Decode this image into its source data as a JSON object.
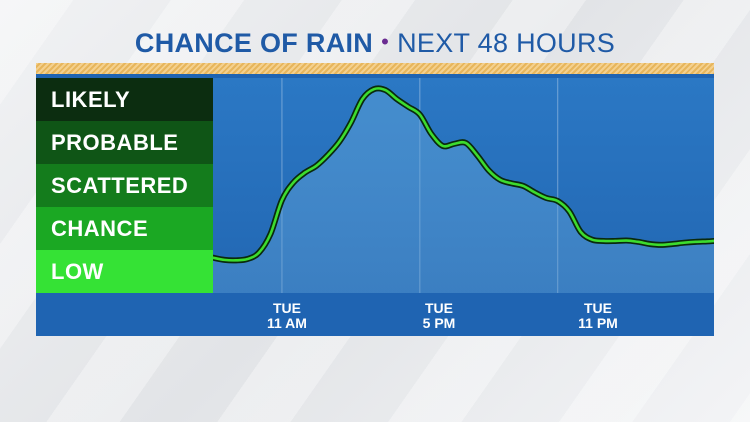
{
  "title": {
    "main": "CHANCE OF RAIN",
    "separator": "•",
    "sub": "NEXT 48 HOURS"
  },
  "colors": {
    "title_blue": "#1f5aa6",
    "separator_purple": "#6a2c91",
    "panel_blue": "#1f64b2",
    "line_green": "#3ddc2e",
    "line_outline": "#0a2a0e",
    "gold_band": "#e7b65c"
  },
  "chart_data": {
    "type": "area",
    "title": "CHANCE OF RAIN • NEXT 48 HOURS",
    "xlabel": "",
    "ylabel": "",
    "y_categories": [
      "LOW",
      "CHANCE",
      "SCATTERED",
      "PROBABLE",
      "LIKELY"
    ],
    "y_category_colors": [
      "#35e235",
      "#1ba823",
      "#147c1c",
      "#0f5516",
      "#0c2d10"
    ],
    "x_ticks": [
      {
        "day": "TUE",
        "time": "11 AM",
        "hour": 11
      },
      {
        "day": "TUE",
        "time": "5 PM",
        "hour": 17
      },
      {
        "day": "TUE",
        "time": "11 PM",
        "hour": 23
      }
    ],
    "xlim": [
      8,
      29.8
    ],
    "ylim": [
      0,
      5
    ],
    "grid": "vertical lines at ticks",
    "x": [
      8,
      8.5,
      9,
      9.5,
      10,
      10.5,
      11,
      11.5,
      12,
      12.5,
      13,
      13.5,
      14,
      14.5,
      15,
      15.5,
      16,
      16.5,
      17,
      17.5,
      18,
      18.5,
      19,
      19.5,
      20,
      20.5,
      21,
      21.5,
      22,
      22.5,
      23,
      23.5,
      24,
      24.5,
      25,
      25.5,
      26,
      26.5,
      27,
      27.5,
      28,
      28.5,
      29,
      29.5,
      29.8
    ],
    "values": [
      0.82,
      0.77,
      0.76,
      0.79,
      0.94,
      1.37,
      2.16,
      2.57,
      2.8,
      2.96,
      3.21,
      3.52,
      3.96,
      4.51,
      4.74,
      4.72,
      4.51,
      4.33,
      4.15,
      3.7,
      3.42,
      3.47,
      3.49,
      3.2,
      2.85,
      2.63,
      2.55,
      2.49,
      2.34,
      2.21,
      2.14,
      1.9,
      1.42,
      1.24,
      1.21,
      1.21,
      1.22,
      1.19,
      1.14,
      1.12,
      1.14,
      1.17,
      1.19,
      1.2,
      1.21
    ]
  }
}
